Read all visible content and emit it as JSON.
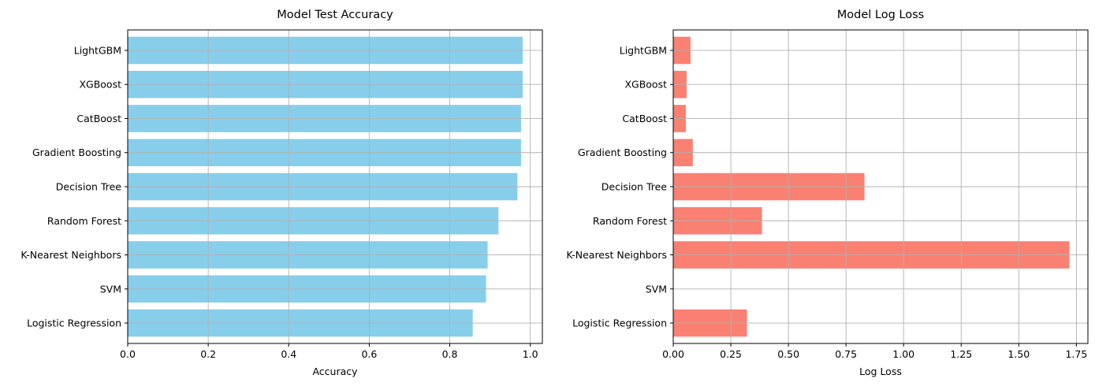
{
  "chart_data": [
    {
      "type": "bar",
      "orientation": "horizontal",
      "title": "Model Test Accuracy",
      "xlabel": "Accuracy",
      "ylabel": "",
      "xlim": [
        0,
        1.03
      ],
      "xticks": [
        "0.0",
        "0.2",
        "0.4",
        "0.6",
        "0.8",
        "1.0"
      ],
      "xtick_values": [
        0,
        0.2,
        0.4,
        0.6,
        0.8,
        1.0
      ],
      "grid": true,
      "color": "#87CEEB",
      "categories": [
        "Logistic Regression",
        "SVM",
        "K-Nearest Neighbors",
        "Random Forest",
        "Decision Tree",
        "Gradient Boosting",
        "CatBoost",
        "XGBoost",
        "LightGBM"
      ],
      "values": [
        0.857,
        0.89,
        0.894,
        0.921,
        0.968,
        0.977,
        0.977,
        0.981,
        0.981
      ]
    },
    {
      "type": "bar",
      "orientation": "horizontal",
      "title": "Model Log Loss",
      "xlabel": "Log Loss",
      "ylabel": "",
      "xlim": [
        0,
        1.8
      ],
      "xticks": [
        "0.00",
        "0.25",
        "0.50",
        "0.75",
        "1.00",
        "1.25",
        "1.50",
        "1.75"
      ],
      "xtick_values": [
        0,
        0.25,
        0.5,
        0.75,
        1.0,
        1.25,
        1.5,
        1.75
      ],
      "grid": true,
      "color": "#FA8072",
      "categories": [
        "Logistic Regression",
        "SVM",
        "K-Nearest Neighbors",
        "Random Forest",
        "Decision Tree",
        "Gradient Boosting",
        "CatBoost",
        "XGBoost",
        "LightGBM"
      ],
      "values": [
        0.32,
        null,
        1.72,
        0.385,
        0.83,
        0.085,
        0.055,
        0.058,
        0.075
      ]
    }
  ]
}
